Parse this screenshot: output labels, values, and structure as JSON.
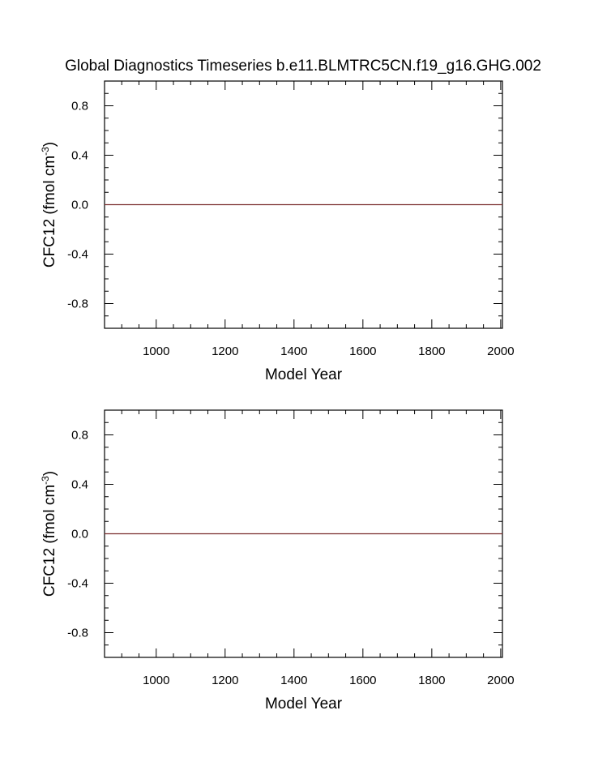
{
  "page": {
    "title": "Global Diagnostics Timeseries b.e11.BLMTRC5CN.f19_g16.GHG.002"
  },
  "chart_data": [
    {
      "type": "line",
      "xlabel": "Model Year",
      "ylabel_main": "CFC12 (fmol cm",
      "ylabel_sup": "-3",
      "ylabel_close": ")",
      "xlim": [
        850,
        2005
      ],
      "ylim": [
        -1.0,
        1.0
      ],
      "x_ticks": [
        1000,
        1200,
        1400,
        1600,
        1800,
        2000
      ],
      "x_tick_labels": [
        "1000",
        "1200",
        "1400",
        "1600",
        "1800",
        "2000"
      ],
      "y_ticks": [
        0.8,
        0.4,
        0.0,
        -0.4,
        -0.8
      ],
      "y_tick_labels": [
        "0.8",
        "0.4",
        "0.0",
        "-0.4",
        "-0.8"
      ],
      "grid": false,
      "series": [
        {
          "color": "#7a2e2e",
          "x": [
            850,
            2005
          ],
          "y": [
            0.0,
            0.0
          ]
        }
      ]
    },
    {
      "type": "line",
      "xlabel": "Model Year",
      "ylabel_main": "CFC12 (fmol cm",
      "ylabel_sup": "-3",
      "ylabel_close": ")",
      "xlim": [
        850,
        2005
      ],
      "ylim": [
        -1.0,
        1.0
      ],
      "x_ticks": [
        1000,
        1200,
        1400,
        1600,
        1800,
        2000
      ],
      "x_tick_labels": [
        "1000",
        "1200",
        "1400",
        "1600",
        "1800",
        "2000"
      ],
      "y_ticks": [
        0.8,
        0.4,
        0.0,
        -0.4,
        -0.8
      ],
      "y_tick_labels": [
        "0.8",
        "0.4",
        "0.0",
        "-0.4",
        "-0.8"
      ],
      "grid": false,
      "series": [
        {
          "color": "#7a2e2e",
          "x": [
            850,
            2005
          ],
          "y": [
            0.0,
            0.0
          ]
        }
      ]
    }
  ]
}
